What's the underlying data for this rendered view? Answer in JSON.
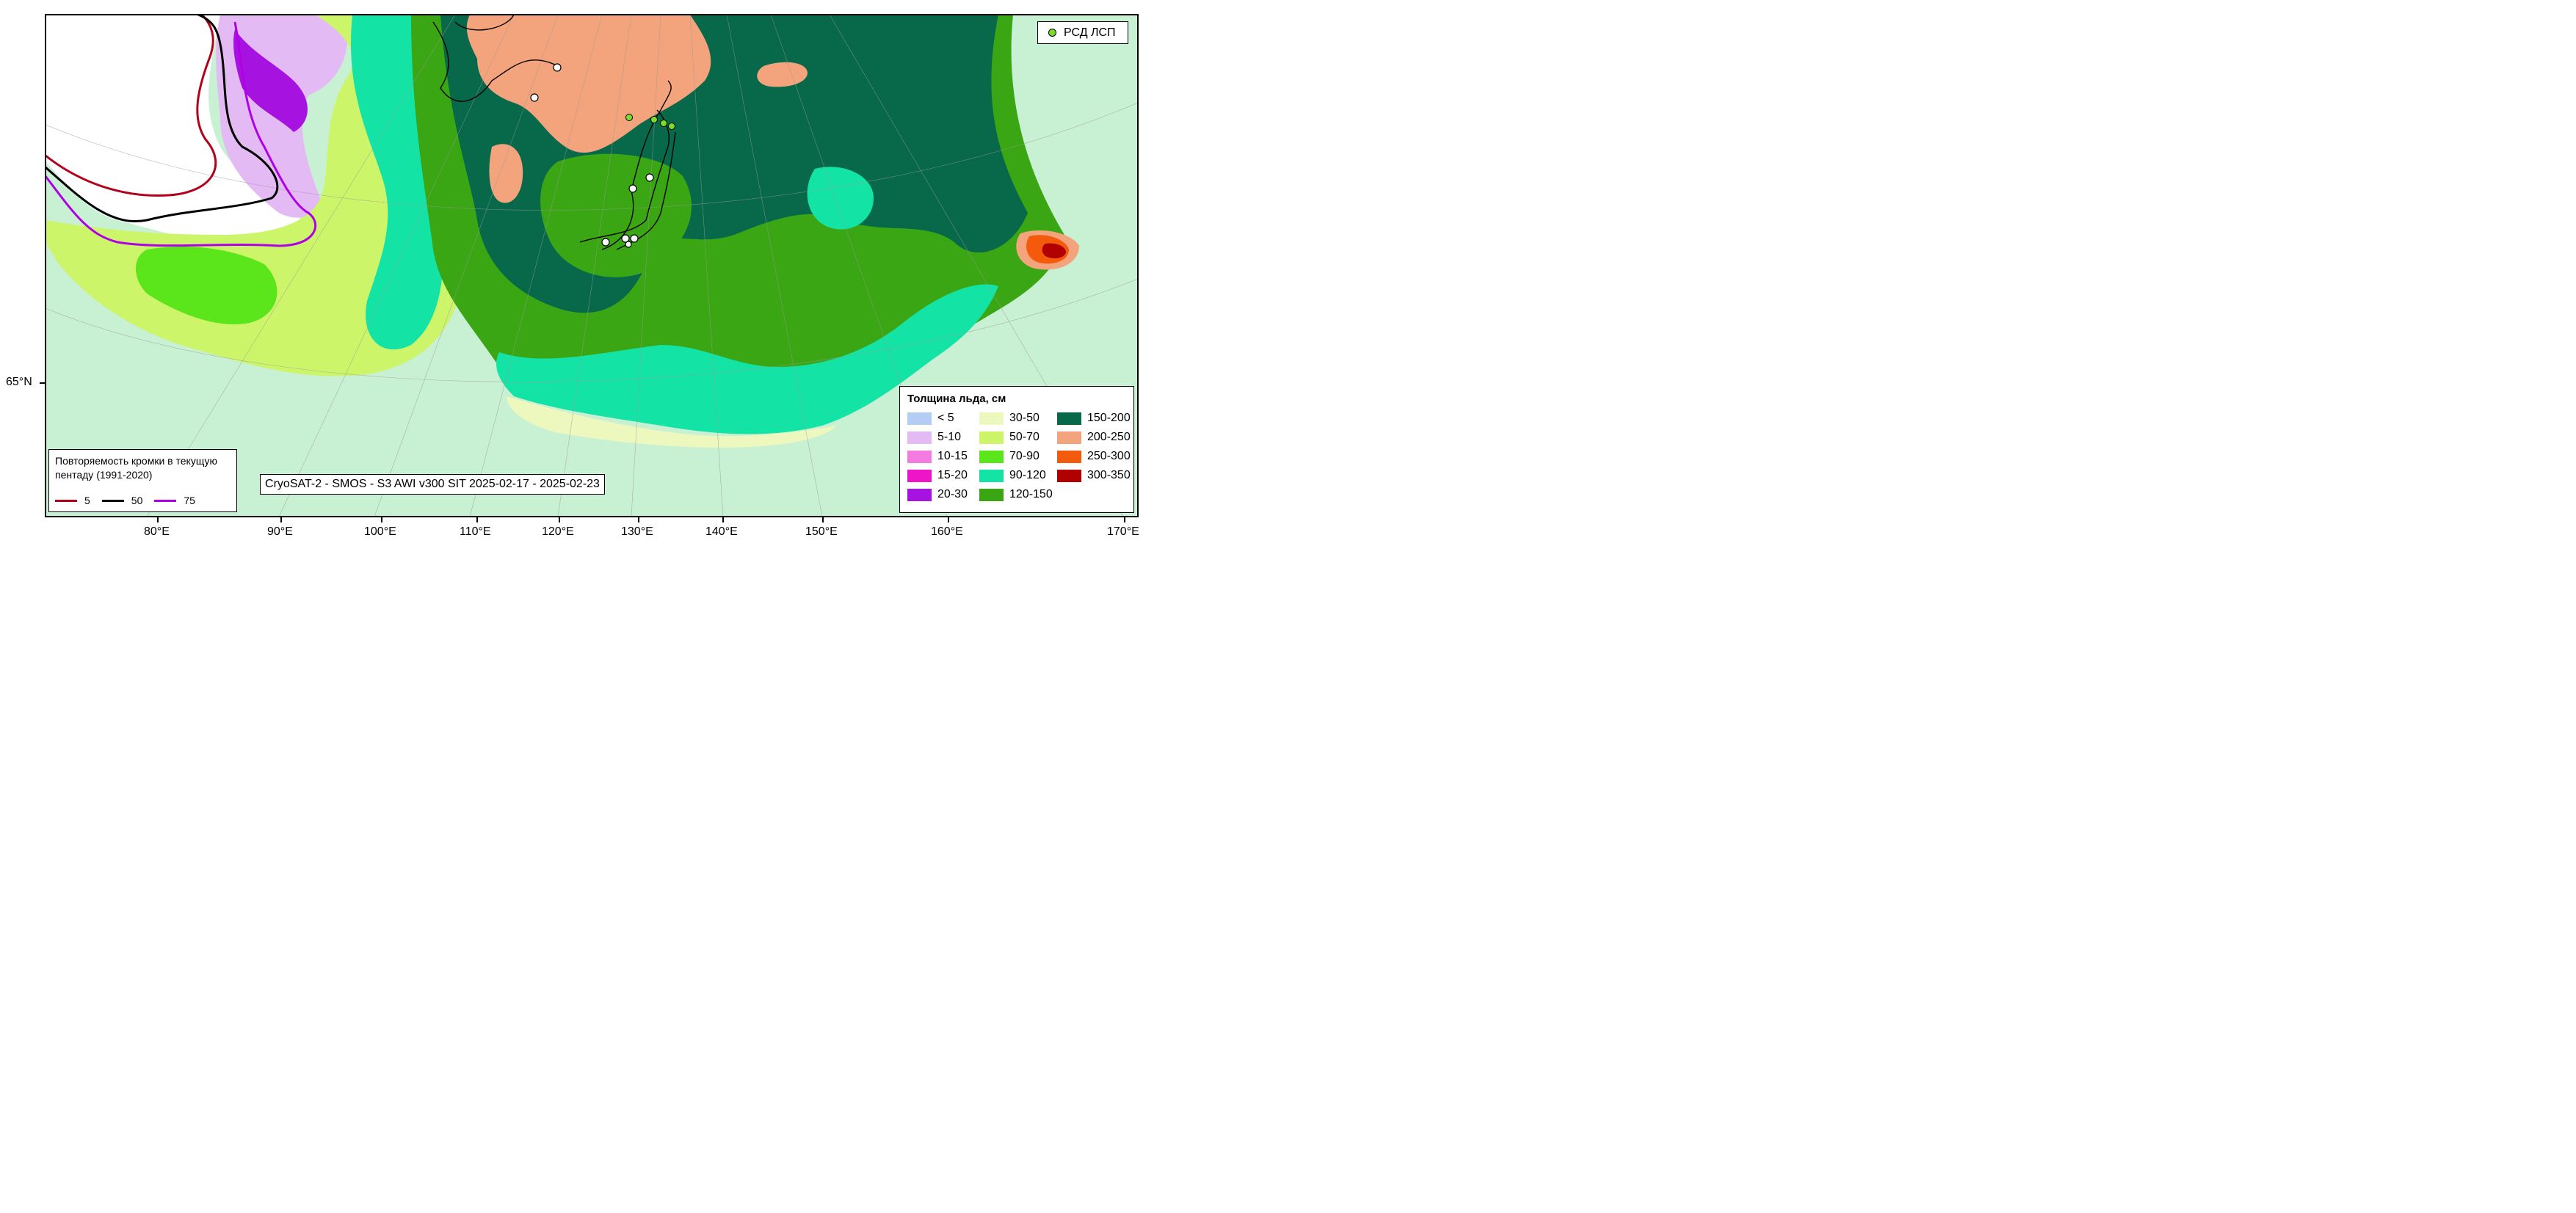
{
  "gps_legend": {
    "label": "РСД ЛСП",
    "marker_color": "#7bdc2a"
  },
  "edge_legend": {
    "title": "Повторяемость кромки в текущую пентаду (1991-2020)",
    "items": [
      {
        "label": "5",
        "color": "#b3001b"
      },
      {
        "label": "50",
        "color": "#000000"
      },
      {
        "label": "75",
        "color": "#b000e8"
      }
    ]
  },
  "source_label": "CryoSAT-2 - SMOS - S3 AWI v300 SIT 2025-02-17 - 2025-02-23",
  "thickness_legend": {
    "title": "Толщина льда, см",
    "classes": [
      {
        "label": "< 5",
        "color": "#b4cdf5"
      },
      {
        "label": "5-10",
        "color": "#e3baf3"
      },
      {
        "label": "10-15",
        "color": "#f47be0"
      },
      {
        "label": "15-20",
        "color": "#ee14c8"
      },
      {
        "label": "20-30",
        "color": "#a613e0"
      },
      {
        "label": "30-50",
        "color": "#ecf8bd"
      },
      {
        "label": "50-70",
        "color": "#cdf56a"
      },
      {
        "label": "70-90",
        "color": "#5be51b"
      },
      {
        "label": "90-120",
        "color": "#14e3a6"
      },
      {
        "label": "120-150",
        "color": "#3aa614"
      },
      {
        "label": "150-200",
        "color": "#08684a"
      },
      {
        "label": "200-250",
        "color": "#f4a47c"
      },
      {
        "label": "250-300",
        "color": "#f45a0b"
      },
      {
        "label": "300-350",
        "color": "#b00000"
      }
    ]
  },
  "axis": {
    "lon_labels": [
      "80°E",
      "90°E",
      "100°E",
      "110°E",
      "120°E",
      "130°E",
      "140°E",
      "150°E",
      "160°E",
      "170°E"
    ],
    "lat_labels": [
      "65°N"
    ]
  },
  "colors": {
    "land": "#c8f0d2",
    "open_water": "#ffffff",
    "frame": "#000000"
  }
}
